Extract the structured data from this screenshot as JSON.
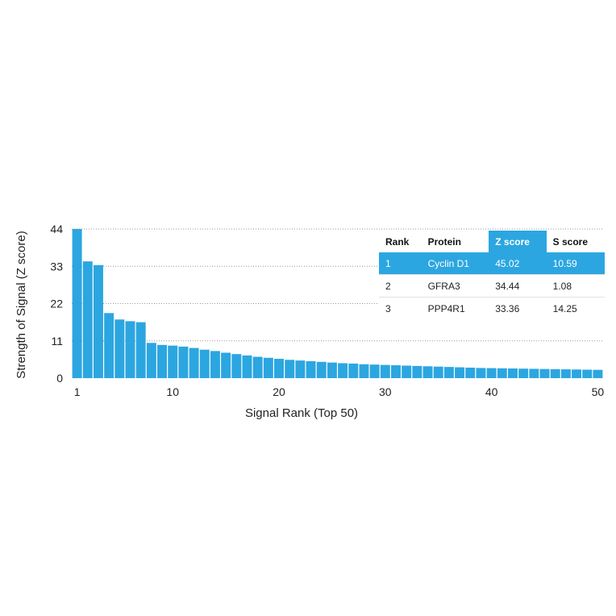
{
  "chart_data": {
    "type": "bar",
    "xlabel": "Signal Rank (Top 50)",
    "ylabel": "Strength of Signal (Z score)",
    "ylim": [
      0,
      44
    ],
    "yticks": [
      "0",
      "11",
      "22",
      "33",
      "44"
    ],
    "xticks": [
      "1",
      "10",
      "20",
      "30",
      "40",
      "50"
    ],
    "grid": "horizontal dotted",
    "categories": [
      1,
      2,
      3,
      4,
      5,
      6,
      7,
      8,
      9,
      10,
      11,
      12,
      13,
      14,
      15,
      16,
      17,
      18,
      19,
      20,
      21,
      22,
      23,
      24,
      25,
      26,
      27,
      28,
      29,
      30,
      31,
      32,
      33,
      34,
      35,
      36,
      37,
      38,
      39,
      40,
      41,
      42,
      43,
      44,
      45,
      46,
      47,
      48,
      49,
      50
    ],
    "values": [
      45.02,
      34.44,
      33.36,
      19.2,
      17.3,
      16.8,
      16.5,
      10.4,
      9.8,
      9.6,
      9.3,
      8.9,
      8.4,
      8.0,
      7.5,
      7.1,
      6.7,
      6.3,
      6.0,
      5.7,
      5.4,
      5.2,
      5.0,
      4.8,
      4.6,
      4.4,
      4.3,
      4.1,
      4.0,
      3.9,
      3.8,
      3.7,
      3.6,
      3.5,
      3.4,
      3.3,
      3.2,
      3.1,
      3.0,
      2.95,
      2.9,
      2.85,
      2.8,
      2.75,
      2.7,
      2.65,
      2.6,
      2.55,
      2.5,
      2.45
    ],
    "color": "#2ca6e0"
  },
  "table": {
    "headers": [
      "Rank",
      "Protein",
      "Z score",
      "S score"
    ],
    "highlight_color": "#2ca6e0",
    "rows": [
      [
        "1",
        "Cyclin D1",
        "45.02",
        "10.59"
      ],
      [
        "2",
        "GFRA3",
        "34.44",
        "1.08"
      ],
      [
        "3",
        "PPP4R1",
        "33.36",
        "14.25"
      ]
    ]
  }
}
